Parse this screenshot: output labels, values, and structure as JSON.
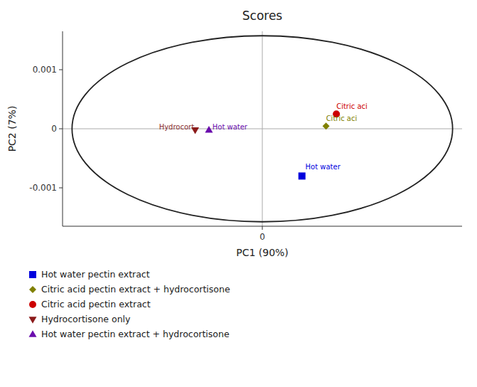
{
  "chart_data": {
    "type": "scatter",
    "title": "Scores",
    "xlabel": "PC1 (90%)",
    "ylabel": "PC2 (7%)",
    "xlim": [
      -0.0058,
      0.0058
    ],
    "ylim": [
      -0.00165,
      0.00165
    ],
    "xticks": [
      0
    ],
    "yticks": [
      -0.001,
      0,
      0.001
    ],
    "grid": false,
    "legend": "below",
    "series": [
      {
        "name": "Hot water pectin extract",
        "color": "#0000dd",
        "marker": "square",
        "x": [
          0.00115
        ],
        "values": [
          -0.0008
        ]
      },
      {
        "name": "Citric acid pectin extract + hydrocortisone",
        "color": "#808000",
        "marker": "diamond",
        "x": [
          0.00185
        ],
        "values": [
          4.5e-05
        ]
      },
      {
        "name": "Citric acid pectin extract",
        "color": "#cc0000",
        "marker": "circle",
        "x": [
          0.00215
        ],
        "values": [
          0.00025
        ]
      },
      {
        "name": "Hydrocortisone only",
        "color": "#8b1a1a",
        "marker": "triangle-down",
        "x": [
          -0.00195
        ],
        "values": [
          -2e-05
        ]
      },
      {
        "name": "Hot water pectin extract + hydrocortisone",
        "color": "#6a0dad",
        "marker": "triangle-up",
        "x": [
          -0.00155
        ],
        "values": [
          -2e-05
        ]
      }
    ],
    "annotations": [
      {
        "text": "Hot water",
        "x": 0.00125,
        "y": -0.0007,
        "color": "#0000dd"
      },
      {
        "text": "Citric aci",
        "x": 0.00185,
        "y": 0.00012,
        "color": "#808000"
      },
      {
        "text": "Citric aci",
        "x": 0.00215,
        "y": 0.00033,
        "color": "#cc0000"
      },
      {
        "text": "Hydrocort",
        "x": -0.003,
        "y": -2e-05,
        "color": "#8b3030"
      },
      {
        "text": "Hot water",
        "x": -0.00145,
        "y": -2e-05,
        "color": "#6a0dad"
      }
    ],
    "ellipse": {
      "cx": 0.0,
      "cy": 0.0,
      "width": 0.01105,
      "height": 0.00315
    },
    "hlines": [
      0
    ],
    "vlines": [
      0
    ]
  }
}
